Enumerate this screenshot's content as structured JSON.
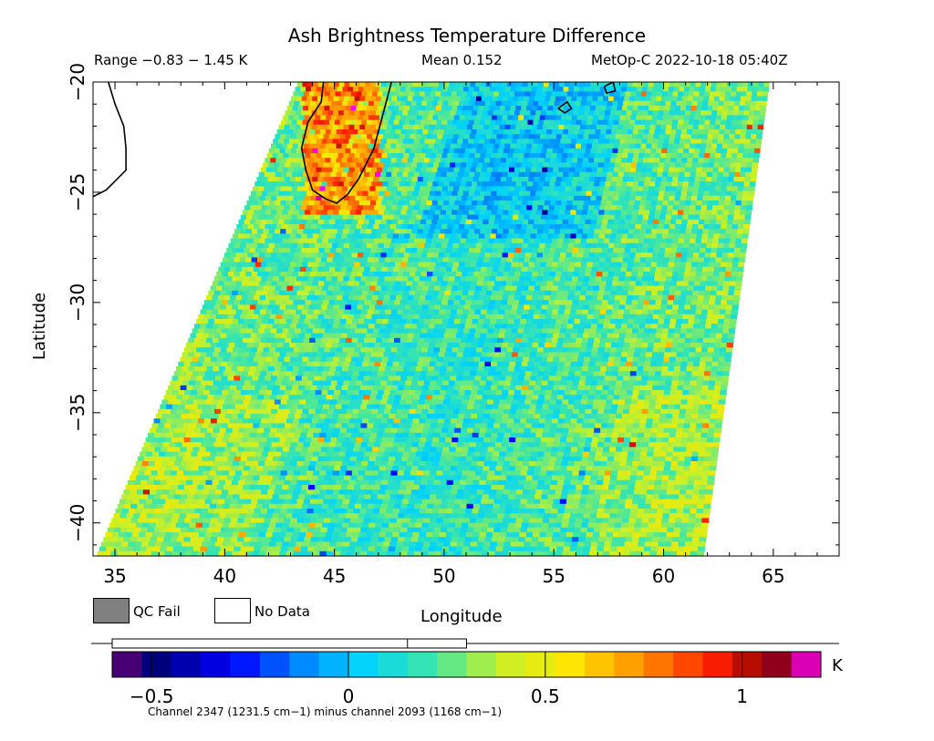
{
  "chart_data": {
    "type": "heatmap",
    "title": "Ash Brightness Temperature Difference",
    "range_text": "Range −0.83 − 1.45 K",
    "mean_text": "Mean 0.152",
    "satellite_time": "MetOp-C 2022-10-18 05:40Z",
    "xlabel": "Longitude",
    "ylabel": "Latitude",
    "xlim": [
      34,
      68
    ],
    "ylim": [
      -41.5,
      -20
    ],
    "xticks": [
      35,
      40,
      45,
      50,
      55,
      60,
      65
    ],
    "yticks": [
      -20,
      -25,
      -30,
      -35,
      -40
    ],
    "xtick_labels": [
      "35",
      "40",
      "45",
      "50",
      "55",
      "60",
      "65"
    ],
    "ytick_labels": [
      "−20",
      "−25",
      "−30",
      "−35",
      "−40"
    ],
    "swath_corners_lon_lat": {
      "top_left": [
        43.3,
        -20
      ],
      "top_right": [
        64.8,
        -20
      ],
      "bottom_right": [
        61.8,
        -41.5
      ],
      "bottom_left": [
        34.1,
        -41.5
      ]
    },
    "value_range": [
      -0.83,
      1.45
    ],
    "mean": 0.152,
    "units": "K",
    "colorbar": {
      "min": -0.6,
      "max": 1.2,
      "ticks": [
        -0.5,
        0,
        0.5,
        1
      ],
      "tick_labels": [
        "−0.5",
        "0",
        "0.5",
        "1"
      ],
      "histogram_box": [
        -0.6,
        0.3
      ],
      "histogram_median": 0.15
    },
    "legend": [
      {
        "label": "QC Fail",
        "color": "#808080"
      },
      {
        "label": "No Data",
        "color": "#ffffff"
      }
    ],
    "footnote": "Channel 2347 (1231.5 cm−1) minus channel 2093 (1168 cm−1)"
  }
}
